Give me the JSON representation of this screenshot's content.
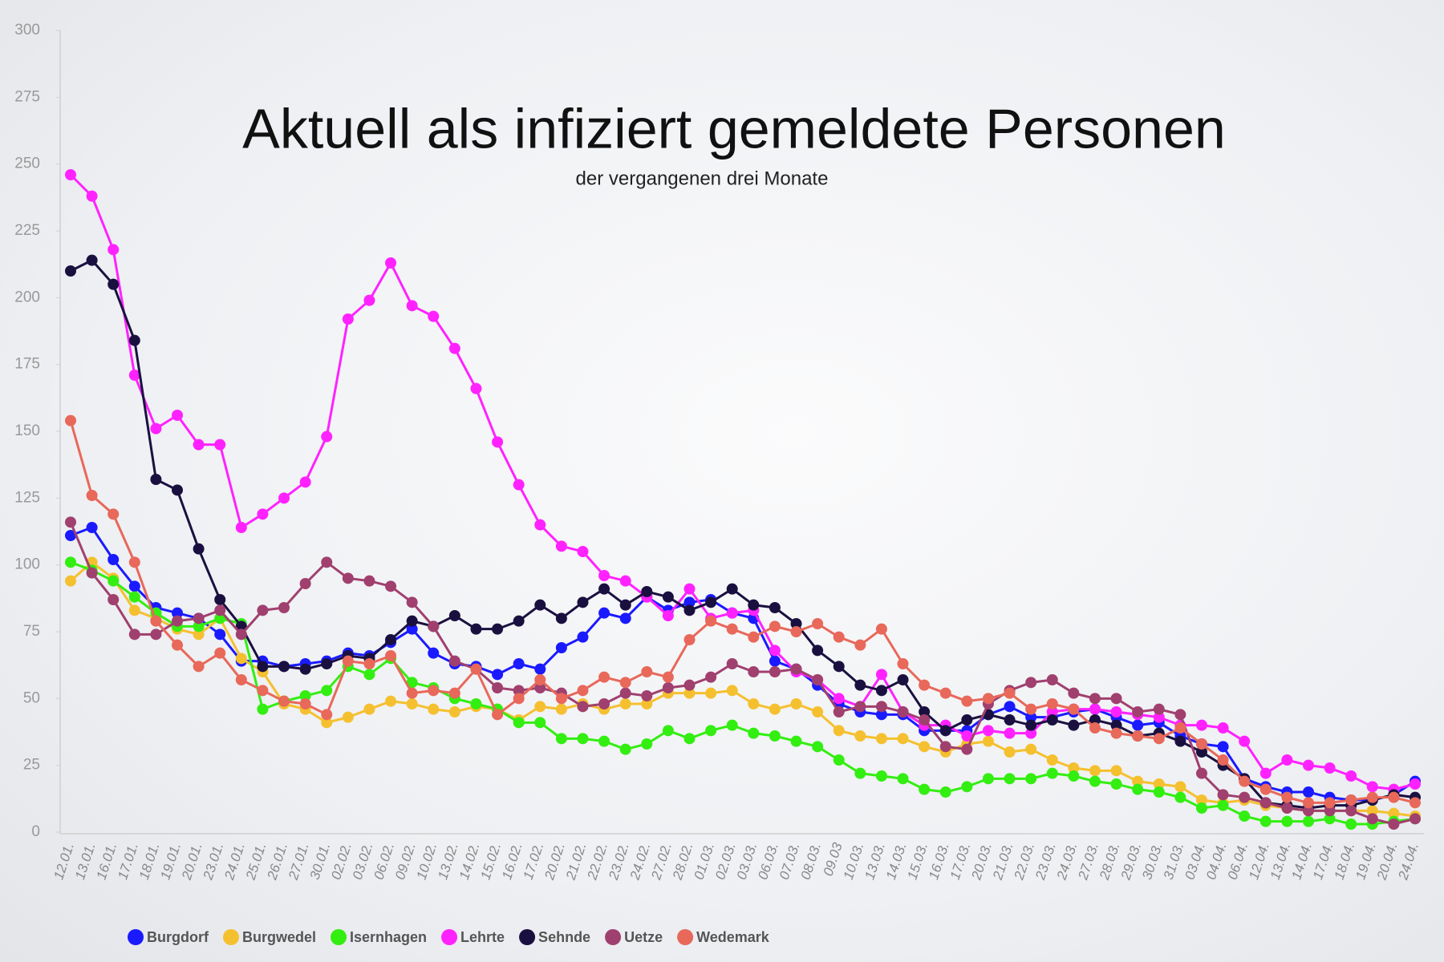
{
  "chart_data": {
    "type": "line",
    "title": "Aktuell als infiziert gemeldete Personen",
    "subtitle": "der vergangenen drei Monate",
    "categories": [
      "12.01.",
      "13.01.",
      "16.01.",
      "17.01.",
      "18.01.",
      "19.01.",
      "20.01.",
      "23.01.",
      "24.01.",
      "25.01.",
      "26.01.",
      "27.01.",
      "30.01.",
      "02.02.",
      "03.02.",
      "06.02.",
      "09.02.",
      "10.02.",
      "13.02.",
      "14.02.",
      "15.02.",
      "16.02.",
      "17.02.",
      "20.02.",
      "21.02.",
      "22.02.",
      "23.02.",
      "24.02.",
      "27.02.",
      "28.02.",
      "01.03.",
      "02.03.",
      "03.03.",
      "06.03.",
      "07.03.",
      "08.03.",
      "09.03",
      "10.03.",
      "13.03.",
      "14.03.",
      "15.03.",
      "16.03.",
      "17.03.",
      "20.03.",
      "21.03.",
      "22.03.",
      "23.03.",
      "24.03.",
      "27.03.",
      "28.03.",
      "29.03.",
      "30.03.",
      "31.03.",
      "03.04.",
      "04.04.",
      "06.04.",
      "12.04.",
      "13.04.",
      "14.04.",
      "17.04.",
      "18.04.",
      "19.04.",
      "20.04.",
      "24.04."
    ],
    "series": [
      {
        "name": "Burgdorf",
        "color": "#1a1aff",
        "values": [
          111,
          114,
          102,
          92,
          84,
          82,
          80,
          74,
          64,
          64,
          62,
          63,
          64,
          67,
          66,
          71,
          76,
          67,
          63,
          62,
          59,
          63,
          61,
          69,
          73,
          82,
          80,
          88,
          83,
          86,
          87,
          82,
          80,
          64,
          61,
          55,
          48,
          45,
          44,
          44,
          38,
          38,
          38,
          44,
          47,
          43,
          43,
          45,
          46,
          43,
          40,
          41,
          36,
          33,
          32,
          20,
          17,
          15,
          15,
          13,
          12,
          12,
          14,
          19
        ]
      },
      {
        "name": "Burgwedel",
        "color": "#f5c030",
        "values": [
          94,
          101,
          95,
          83,
          80,
          76,
          74,
          80,
          65,
          60,
          48,
          46,
          41,
          43,
          46,
          49,
          48,
          46,
          45,
          47,
          46,
          42,
          47,
          46,
          48,
          46,
          48,
          48,
          52,
          52,
          52,
          53,
          48,
          46,
          48,
          45,
          38,
          36,
          35,
          35,
          32,
          30,
          33,
          34,
          30,
          31,
          27,
          24,
          23,
          23,
          19,
          18,
          17,
          12,
          11,
          12,
          10,
          9,
          8,
          8,
          8,
          8,
          7,
          6
        ]
      },
      {
        "name": "Isernhagen",
        "color": "#33ee11",
        "values": [
          101,
          98,
          94,
          88,
          82,
          77,
          77,
          80,
          78,
          46,
          49,
          51,
          53,
          62,
          59,
          65,
          56,
          54,
          50,
          48,
          46,
          41,
          41,
          35,
          35,
          34,
          31,
          33,
          38,
          35,
          38,
          40,
          37,
          36,
          34,
          32,
          27,
          22,
          21,
          20,
          16,
          15,
          17,
          20,
          20,
          20,
          22,
          21,
          19,
          18,
          16,
          15,
          13,
          9,
          10,
          6,
          4,
          4,
          4,
          5,
          3,
          3,
          4,
          5
        ]
      },
      {
        "name": "Lehrte",
        "color": "#ff22ff",
        "values": [
          246,
          238,
          218,
          171,
          151,
          156,
          145,
          145,
          114,
          119,
          125,
          131,
          148,
          192,
          199,
          213,
          197,
          193,
          181,
          166,
          146,
          130,
          115,
          107,
          105,
          96,
          94,
          88,
          81,
          91,
          80,
          82,
          83,
          68,
          60,
          57,
          50,
          47,
          59,
          45,
          40,
          40,
          36,
          38,
          37,
          37,
          45,
          46,
          46,
          45,
          44,
          43,
          40,
          40,
          39,
          34,
          22,
          27,
          25,
          24,
          21,
          17,
          16,
          18
        ]
      },
      {
        "name": "Sehnde",
        "color": "#1a1040",
        "values": [
          210,
          214,
          205,
          184,
          132,
          128,
          106,
          87,
          77,
          62,
          62,
          61,
          63,
          66,
          65,
          72,
          79,
          77,
          81,
          76,
          76,
          79,
          85,
          80,
          86,
          91,
          85,
          90,
          88,
          83,
          86,
          91,
          85,
          84,
          78,
          68,
          62,
          55,
          53,
          57,
          45,
          38,
          42,
          44,
          42,
          40,
          42,
          40,
          42,
          40,
          36,
          37,
          34,
          30,
          25,
          20,
          11,
          10,
          9,
          10,
          10,
          12,
          14,
          13
        ]
      },
      {
        "name": "Uetze",
        "color": "#a0406e",
        "values": [
          116,
          97,
          87,
          74,
          74,
          79,
          80,
          83,
          74,
          83,
          84,
          93,
          101,
          95,
          94,
          92,
          86,
          77,
          64,
          61,
          54,
          53,
          54,
          52,
          47,
          48,
          52,
          51,
          54,
          55,
          58,
          63,
          60,
          60,
          61,
          57,
          45,
          47,
          47,
          45,
          42,
          32,
          31,
          48,
          53,
          56,
          57,
          52,
          50,
          50,
          45,
          46,
          44,
          22,
          14,
          13,
          11,
          9,
          8,
          8,
          8,
          5,
          3,
          5
        ]
      },
      {
        "name": "Wedemark",
        "color": "#e8685a",
        "values": [
          154,
          126,
          119,
          101,
          79,
          70,
          62,
          67,
          57,
          53,
          49,
          48,
          44,
          64,
          63,
          66,
          52,
          53,
          52,
          61,
          44,
          50,
          57,
          50,
          53,
          58,
          56,
          60,
          58,
          72,
          79,
          76,
          73,
          77,
          75,
          78,
          73,
          70,
          76,
          63,
          55,
          52,
          49,
          50,
          52,
          46,
          48,
          46,
          39,
          37,
          36,
          35,
          39,
          33,
          27,
          19,
          16,
          13,
          11,
          11,
          12,
          13,
          13,
          11
        ]
      }
    ],
    "ylim": [
      0,
      300
    ],
    "yticks": [
      0,
      25,
      50,
      75,
      100,
      125,
      150,
      175,
      200,
      225,
      250,
      275,
      300
    ]
  }
}
